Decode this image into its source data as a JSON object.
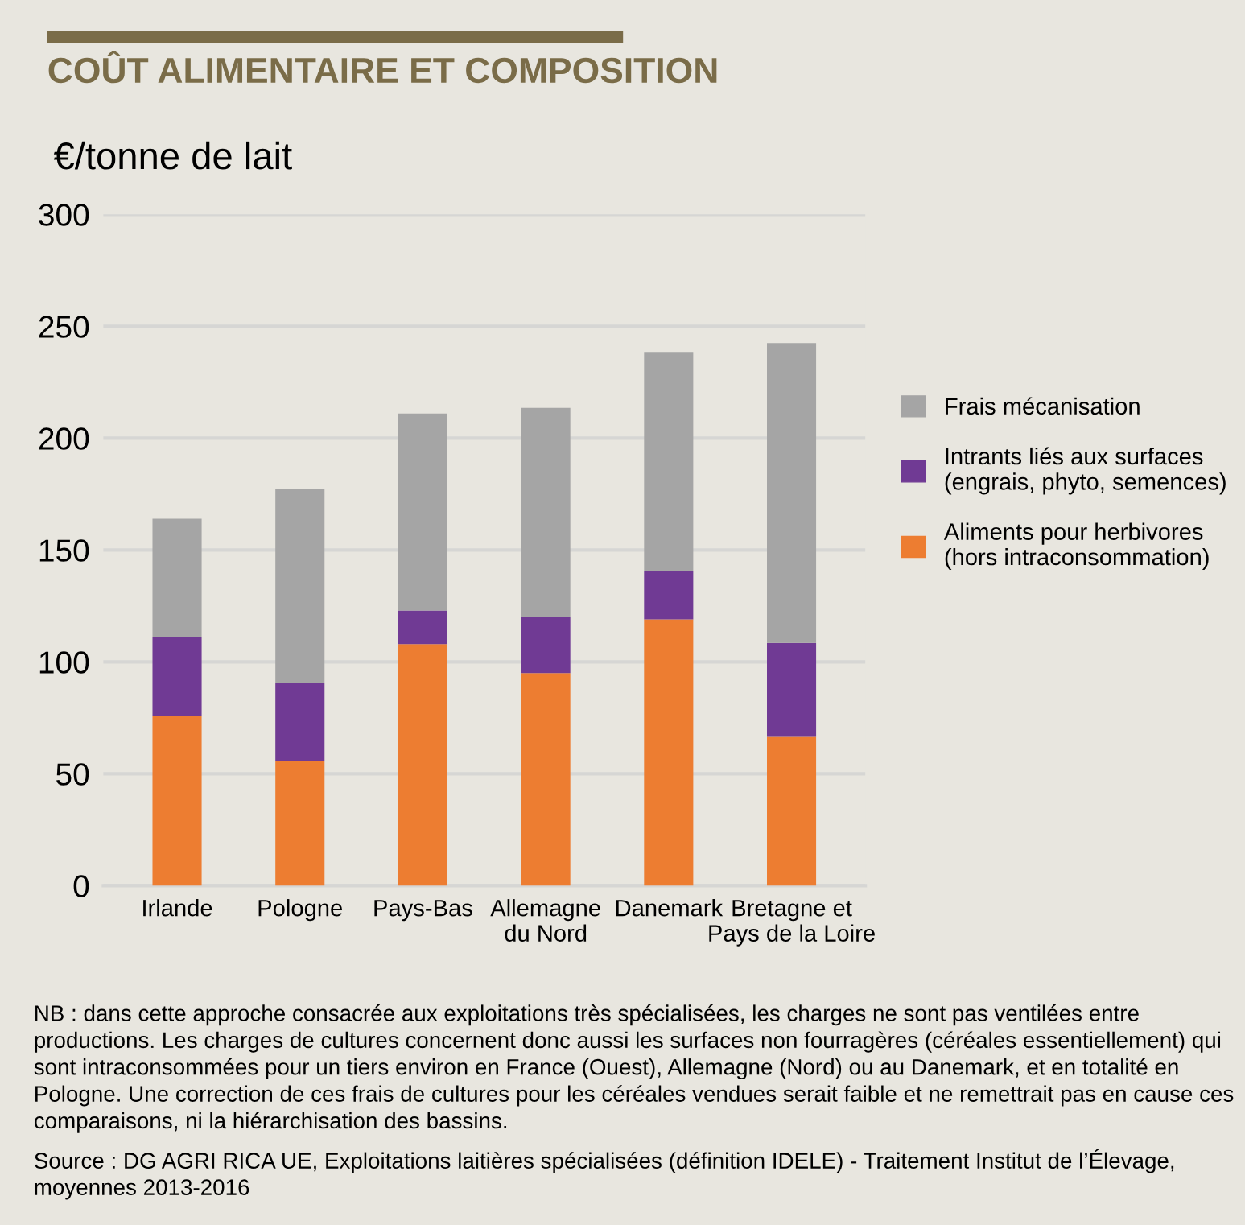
{
  "chart_data": {
    "type": "bar",
    "title": "COÛT ALIMENTAIRE ET COMPOSITION",
    "ylabel": "€/tonne de lait",
    "categories": [
      "Irlande",
      "Pologne",
      "Pays-Bas",
      "Allemagne\ndu Nord",
      "Danemark",
      "Bretagne et\nPays de la Loire"
    ],
    "stacked": true,
    "series": [
      {
        "name": "Aliments pour herbivores\n(hors intraconsommation)",
        "color": "#ed7d31",
        "values": [
          76,
          55.5,
          108,
          95,
          119,
          66.5
        ]
      },
      {
        "name": "Intrants liés aux surfaces\n(engrais, phyto, semences)",
        "color": "#703a94",
        "values": [
          35,
          35,
          15,
          25,
          21.5,
          42
        ]
      },
      {
        "name": "Frais mécanisation",
        "color": "#a5a5a5",
        "values": [
          53,
          87,
          88,
          93.5,
          98,
          134
        ]
      }
    ],
    "ylim": [
      0,
      300
    ],
    "yticks": [
      0,
      50,
      100,
      150,
      200,
      250,
      300
    ],
    "grid": "y",
    "legend": "right",
    "annotations": [
      "NB : dans cette approche consacrée aux exploitations très spécialisées, les charges ne sont pas ventilées entre productions. Les charges de cultures concernent donc aussi les surfaces non fourragères (céréales essentiellement) qui sont intraconsommées pour un tiers environ en France (Ouest), Allemagne (Nord) ou au Danemark, et en totalité en Pologne. Une correction de ces frais de cultures pour les céréales vendues serait faible et ne remettrait pas en cause ces comparaisons, ni la hiérarchisation des bassins.",
      "Source : DG AGRI RICA UE, Exploitations laitières spécialisées (définition IDELE) - Traitement Institut de l’Élevage, moyennes 2013-2016"
    ]
  }
}
